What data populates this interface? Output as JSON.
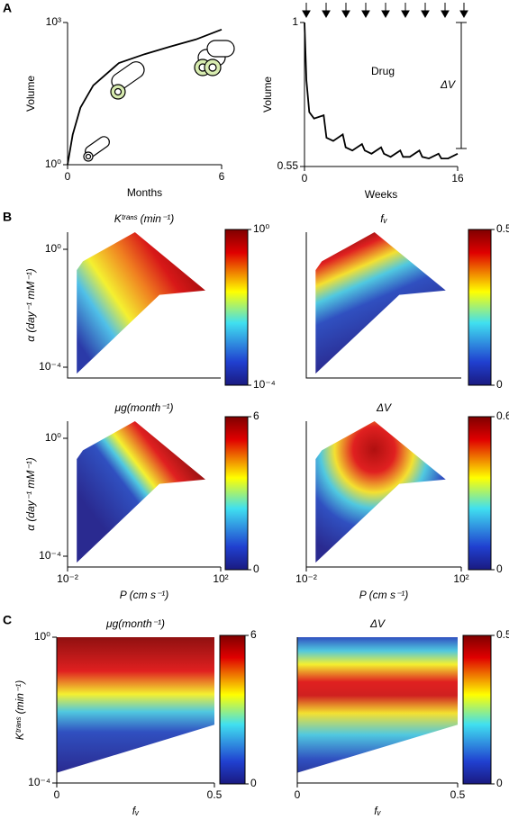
{
  "panel_labels": [
    "A",
    "B",
    "C"
  ],
  "chart_data": [
    {
      "type": "line",
      "xlabel": "Months",
      "ylabel": "Volume",
      "log_y": true,
      "x": [
        0,
        0.2,
        0.5,
        1,
        2,
        3,
        4,
        5,
        6
      ],
      "values": [
        1,
        4.3,
        16,
        47,
        140,
        215,
        310,
        440,
        710
      ],
      "xlim": [
        0,
        6
      ],
      "xticks": [
        0,
        6
      ],
      "ylim": [
        1,
        1000
      ],
      "yticks": [
        {
          "value": 1,
          "label": "10⁰"
        },
        {
          "value": 1000,
          "label": "10³"
        }
      ]
    },
    {
      "type": "line",
      "xlabel": "Weeks",
      "ylabel": "Volume",
      "annotations": [
        "Drug",
        "ΔV"
      ],
      "x": [
        0,
        0.2,
        0.5,
        1,
        2,
        2.3,
        3,
        4,
        4.3,
        5,
        6,
        6.3,
        7,
        8,
        8.3,
        9,
        10,
        10.3,
        11,
        12,
        12.3,
        13,
        14,
        14.3,
        15,
        16
      ],
      "values": [
        1,
        0.82,
        0.72,
        0.7,
        0.71,
        0.64,
        0.63,
        0.65,
        0.61,
        0.6,
        0.62,
        0.6,
        0.59,
        0.61,
        0.59,
        0.58,
        0.6,
        0.58,
        0.58,
        0.6,
        0.58,
        0.575,
        0.59,
        0.575,
        0.575,
        0.59
      ],
      "xlim": [
        0,
        16
      ],
      "xticks": [
        0,
        16
      ],
      "ylim": [
        0.55,
        1
      ],
      "yticks": [
        0.55,
        1
      ]
    },
    {
      "type": "heatmap",
      "title": "Kᵗʳᵃⁿˢ (min⁻¹)",
      "ylabel": "α (day⁻¹ mM⁻¹)",
      "log_x": true,
      "log_y": true,
      "xlim": [
        0.01,
        100
      ],
      "ylim": [
        4.3e-05,
        3.8
      ],
      "yticks": [
        {
          "value": 1,
          "label": "10⁰"
        },
        {
          "value": 0.0001,
          "label": "10⁻⁴"
        }
      ],
      "colorbar": {
        "log": true,
        "zlim": [
          0.0001,
          1
        ],
        "zticks": [
          {
            "value": 1,
            "label": "10⁰"
          },
          {
            "value": 0.0001,
            "label": "10⁻⁴"
          }
        ]
      }
    },
    {
      "type": "heatmap",
      "title": "fᵥ",
      "log_x": true,
      "log_y": true,
      "xlim": [
        0.01,
        100
      ],
      "ylim": [
        4.3e-05,
        3.8
      ],
      "colorbar": {
        "zlim": [
          0,
          0.5
        ],
        "zticks": [
          0.5,
          0
        ]
      }
    },
    {
      "type": "heatmap",
      "title": "μg(month⁻¹)",
      "ylabel": "α (day⁻¹ mM⁻¹)",
      "xlabel": "P (cm s⁻¹)",
      "log_x": true,
      "log_y": true,
      "xlim": [
        0.01,
        100
      ],
      "ylim": [
        4.3e-05,
        3.8
      ],
      "xticks": [
        {
          "value": 0.01,
          "label": "10⁻²"
        },
        {
          "value": 100,
          "label": "10²"
        }
      ],
      "yticks": [
        {
          "value": 1,
          "label": "10⁰"
        },
        {
          "value": 0.0001,
          "label": "10⁻⁴"
        }
      ],
      "colorbar": {
        "zlim": [
          0,
          6
        ],
        "zticks": [
          6,
          0
        ]
      }
    },
    {
      "type": "heatmap",
      "title": "ΔV",
      "xlabel": "P (cm s⁻¹)",
      "log_x": true,
      "log_y": true,
      "xlim": [
        0.01,
        100
      ],
      "ylim": [
        4.3e-05,
        3.8
      ],
      "xticks": [
        {
          "value": 0.01,
          "label": "10⁻²"
        },
        {
          "value": 100,
          "label": "10²"
        }
      ],
      "colorbar": {
        "zlim": [
          0,
          0.6
        ],
        "zticks": [
          0.6,
          0
        ]
      }
    },
    {
      "type": "heatmap",
      "title": "μg(month⁻¹)",
      "ylabel": "Kᵗʳᵃⁿˢ (min⁻¹)",
      "xlabel": "fᵥ",
      "log_y": true,
      "xlim": [
        0,
        0.5
      ],
      "ylim": [
        0.0001,
        1
      ],
      "xticks": [
        0,
        0.5
      ],
      "yticks": [
        {
          "value": 1,
          "label": "10⁰"
        },
        {
          "value": 0.0001,
          "label": "10⁻⁴"
        }
      ],
      "colorbar": {
        "zlim": [
          0,
          6
        ],
        "zticks": [
          6,
          0
        ]
      }
    },
    {
      "type": "heatmap",
      "title": "ΔV",
      "xlabel": "fᵥ",
      "log_y": true,
      "xlim": [
        0,
        0.5
      ],
      "ylim": [
        0.0001,
        1
      ],
      "xticks": [
        0,
        0.5
      ],
      "colorbar": {
        "zlim": [
          0,
          0.5
        ],
        "zticks": [
          0.5,
          0
        ]
      }
    }
  ]
}
